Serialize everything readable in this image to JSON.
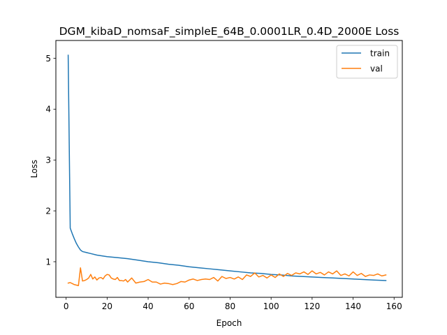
{
  "chart_data": {
    "type": "line",
    "title": "DGM_kibaD_nomsaF_simpleE_64B_0.0001LR_0.4D_2000E Loss",
    "xlabel": "Epoch",
    "ylabel": "Loss",
    "xlim": [
      -5,
      164
    ],
    "ylim": [
      0.3,
      5.35
    ],
    "xticks": [
      0,
      20,
      40,
      60,
      80,
      100,
      120,
      140,
      160
    ],
    "yticks": [
      1,
      2,
      3,
      4,
      5
    ],
    "grid": false,
    "legend_position": "top-right",
    "series": [
      {
        "name": "train",
        "color": "#1f77b4",
        "x": [
          1,
          2,
          3,
          4,
          5,
          6,
          7,
          8,
          10,
          12,
          15,
          20,
          25,
          30,
          35,
          40,
          45,
          50,
          55,
          60,
          65,
          70,
          75,
          80,
          85,
          90,
          95,
          100,
          105,
          110,
          115,
          120,
          125,
          130,
          135,
          140,
          145,
          150,
          156
        ],
        "y": [
          5.06,
          1.66,
          1.55,
          1.45,
          1.36,
          1.29,
          1.23,
          1.2,
          1.18,
          1.16,
          1.13,
          1.1,
          1.08,
          1.06,
          1.03,
          1.0,
          0.98,
          0.95,
          0.93,
          0.9,
          0.88,
          0.86,
          0.84,
          0.82,
          0.8,
          0.78,
          0.77,
          0.75,
          0.74,
          0.72,
          0.71,
          0.7,
          0.69,
          0.68,
          0.67,
          0.66,
          0.65,
          0.64,
          0.63
        ]
      },
      {
        "name": "val",
        "color": "#ff7f0e",
        "x": [
          1,
          2,
          3,
          4,
          5,
          6,
          7,
          8,
          9,
          10,
          11,
          12,
          13,
          14,
          15,
          16,
          17,
          18,
          19,
          20,
          21,
          22,
          23,
          24,
          25,
          26,
          27,
          28,
          29,
          30,
          32,
          34,
          36,
          38,
          40,
          42,
          44,
          46,
          48,
          50,
          52,
          54,
          56,
          58,
          60,
          62,
          64,
          66,
          68,
          70,
          72,
          74,
          76,
          78,
          80,
          82,
          84,
          86,
          88,
          90,
          92,
          94,
          96,
          98,
          100,
          102,
          104,
          106,
          108,
          110,
          112,
          114,
          116,
          118,
          120,
          122,
          124,
          126,
          128,
          130,
          132,
          134,
          136,
          138,
          140,
          142,
          144,
          146,
          148,
          150,
          152,
          154,
          156
        ],
        "y": [
          0.58,
          0.59,
          0.57,
          0.55,
          0.54,
          0.53,
          0.88,
          0.62,
          0.63,
          0.65,
          0.68,
          0.75,
          0.66,
          0.7,
          0.64,
          0.68,
          0.69,
          0.66,
          0.72,
          0.75,
          0.74,
          0.68,
          0.66,
          0.65,
          0.69,
          0.63,
          0.63,
          0.62,
          0.65,
          0.6,
          0.68,
          0.58,
          0.6,
          0.61,
          0.65,
          0.6,
          0.6,
          0.56,
          0.58,
          0.57,
          0.55,
          0.57,
          0.61,
          0.6,
          0.64,
          0.66,
          0.63,
          0.65,
          0.66,
          0.65,
          0.69,
          0.62,
          0.71,
          0.67,
          0.69,
          0.66,
          0.7,
          0.65,
          0.74,
          0.71,
          0.78,
          0.7,
          0.73,
          0.68,
          0.74,
          0.69,
          0.76,
          0.71,
          0.77,
          0.73,
          0.78,
          0.76,
          0.8,
          0.75,
          0.82,
          0.76,
          0.79,
          0.74,
          0.8,
          0.76,
          0.82,
          0.73,
          0.76,
          0.72,
          0.8,
          0.73,
          0.77,
          0.71,
          0.74,
          0.73,
          0.76,
          0.72,
          0.74
        ]
      }
    ]
  }
}
